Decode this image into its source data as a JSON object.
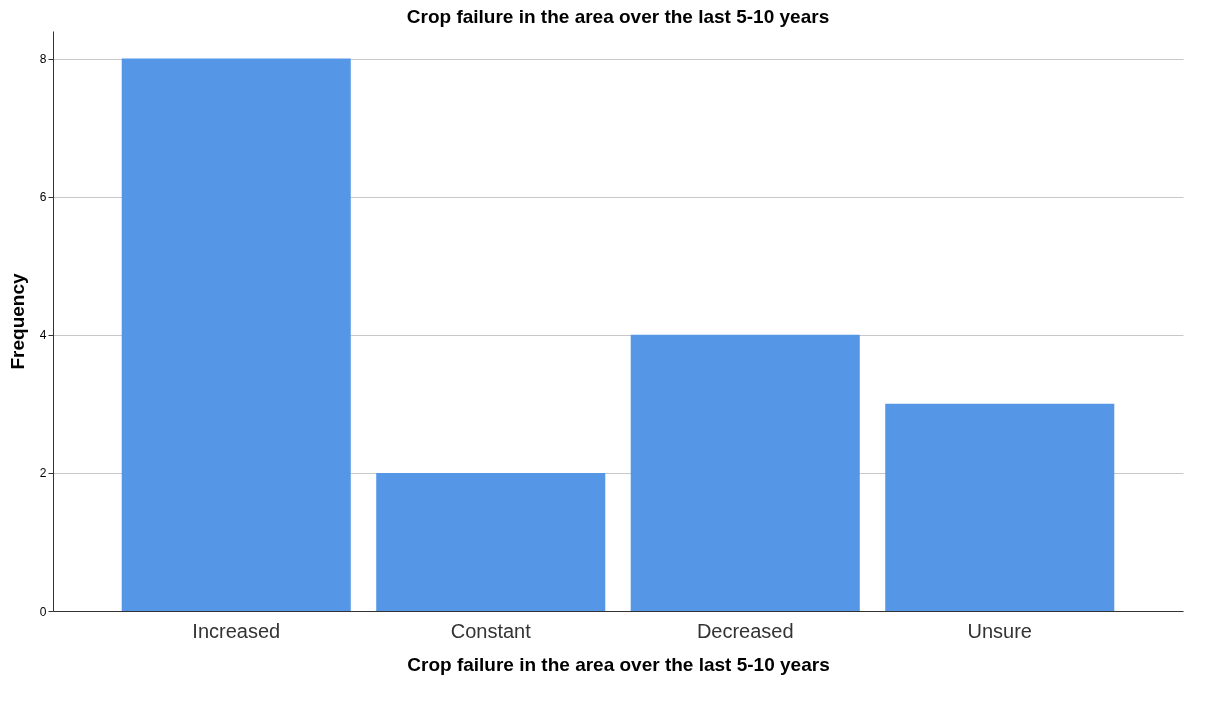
{
  "chart_data": {
    "type": "bar",
    "title": "Crop failure in the area over the last 5-10 years",
    "xlabel": "Crop failure in the area over the last 5-10 years",
    "ylabel": "Frequency",
    "categories": [
      "Increased",
      "Constant",
      "Decreased",
      "Unsure"
    ],
    "values": [
      8,
      2,
      4,
      3
    ],
    "color": "#5596e6",
    "ylim": [
      0,
      8.4
    ],
    "yticks": [
      0,
      2,
      4,
      6,
      8
    ],
    "grid": "y"
  }
}
